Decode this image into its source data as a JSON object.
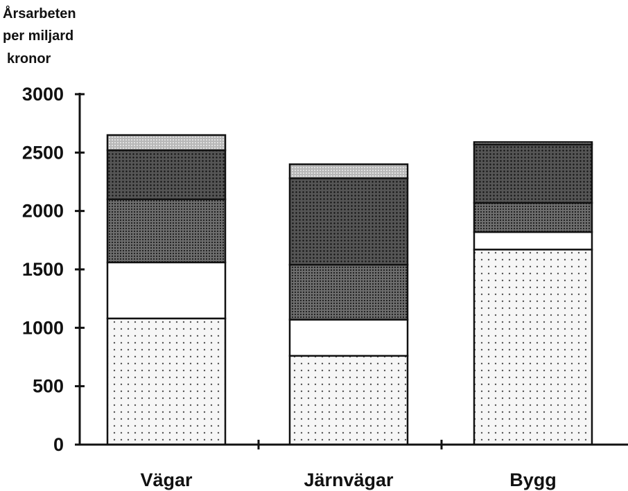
{
  "chart_data": {
    "type": "bar",
    "stacked": true,
    "ylabel_lines": [
      "Årsarbeten",
      "per miljard",
      "kronor"
    ],
    "yticks": [
      "0",
      "500",
      "1000",
      "1500",
      "2000",
      "2500",
      "3000"
    ],
    "ylim": [
      0,
      3000
    ],
    "grid": false,
    "categories": [
      "Vägar",
      "Järnvägar",
      "Bygg"
    ],
    "series": [
      {
        "values": [
          1080,
          760,
          1670
        ]
      },
      {
        "values": [
          480,
          310,
          150
        ]
      },
      {
        "values": [
          540,
          470,
          250
        ]
      },
      {
        "values": [
          420,
          740,
          500
        ]
      },
      {
        "values": [
          130,
          120,
          20
        ]
      }
    ],
    "colors": {
      "segment_fills": [
        "#f6f6f6",
        "#ffffff",
        "#6e6e6e",
        "#555555",
        "#b8b8b8"
      ],
      "dots": [
        "#555555",
        "#ffffff",
        "#1a1a1a",
        "#111111",
        "#ffffff"
      ],
      "outline": "#111111"
    }
  }
}
